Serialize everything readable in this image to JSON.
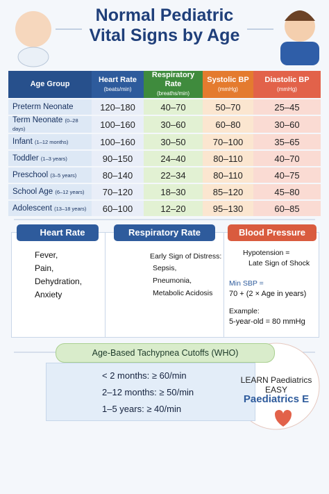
{
  "header": {
    "title_line1": "Normal Pediatric",
    "title_line2": "Vital Signs by Age"
  },
  "table": {
    "headers": [
      {
        "label": "Age Group"
      },
      {
        "label": "Heart Rate",
        "unit": "(beats/min)"
      },
      {
        "label": "Respiratory Rate",
        "unit": "(breaths/min)"
      },
      {
        "label": "Systolic BP",
        "unit": "(mmHg)"
      },
      {
        "label": "Diastolic BP",
        "unit": "(mmHg)"
      }
    ],
    "rows": [
      {
        "age": "Preterm Neonate",
        "cells": [
          "120–180",
          "40–70",
          "50–70",
          "25–45"
        ]
      },
      {
        "age": "Term Neonate",
        "range": "(0–28 days)",
        "cells": [
          "100–160",
          "30–60",
          "60–80",
          "30–60"
        ]
      },
      {
        "age": "Infant",
        "range": "(1–12 months)",
        "cells": [
          "100–160",
          "30–50",
          "70–100",
          "35–65"
        ]
      },
      {
        "age": "Toddler",
        "range": "(1–3 years)",
        "cells": [
          "90–150",
          "24–40",
          "80–110",
          "40–70"
        ]
      },
      {
        "age": "Preschool",
        "range": "(3–5 years)",
        "cells": [
          "80–140",
          "22–34",
          "80–110",
          "40–75"
        ]
      },
      {
        "age": "School Age",
        "range": "(6–12 years)",
        "cells": [
          "70–120",
          "18–30",
          "85–120",
          "45–80"
        ]
      },
      {
        "age": "Adolescent",
        "range": "(13–18 years)",
        "cells": [
          "60–100",
          "12–20",
          "95–130",
          "60–85"
        ]
      }
    ]
  },
  "panels": {
    "heart_rate": {
      "title": "Heart Rate",
      "items": [
        "Fever,",
        "Pain,",
        "Dehydration,",
        "Anxiety"
      ]
    },
    "respiratory_rate": {
      "title": "Respiratory Rate",
      "intro": "Early Sign of Distress:",
      "items": [
        "Sepsis,",
        "Pneumonia,",
        "Metabolic Acidosis"
      ]
    },
    "blood_pressure": {
      "title": "Blood Pressure",
      "lines": [
        "Hypotension =",
        "Late Sign of Shock",
        "Min SBP =",
        "70 + (2 × Age in years)",
        "Example:",
        "5-year-old = 80 mmHg"
      ]
    }
  },
  "tachypnea": {
    "title": "Age-Based Tachypnea Cutoffs (WHO)",
    "items": [
      "< 2 months: ≥ 60/min",
      "2–12 months: ≥ 50/min",
      "1–5 years: ≥ 40/min"
    ]
  },
  "logo": {
    "line1": "LEARN Paediatrics",
    "line2": "EASY",
    "line3": "Paediatrics E"
  }
}
